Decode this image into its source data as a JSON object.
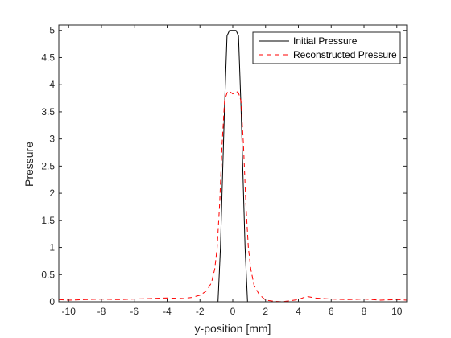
{
  "chart_data": {
    "type": "line",
    "title": "",
    "xlabel": "y-position [mm]",
    "ylabel": "Pressure",
    "xlim": [
      -10.6,
      10.6
    ],
    "ylim": [
      0,
      5.1
    ],
    "xticks": [
      -10,
      -8,
      -6,
      -4,
      -2,
      0,
      2,
      4,
      6,
      8,
      10
    ],
    "xtick_labels": [
      "-10",
      "-8",
      "-6",
      "-4",
      "-2",
      "0",
      "2",
      "4",
      "6",
      "8",
      "10"
    ],
    "yticks": [
      0,
      0.5,
      1,
      1.5,
      2,
      2.5,
      3,
      3.5,
      4,
      4.5,
      5
    ],
    "ytick_labels": [
      "0",
      "0.5",
      "1",
      "1.5",
      "2",
      "2.5",
      "3",
      "3.5",
      "4",
      "4.5",
      "5"
    ],
    "grid": false,
    "legend_position": "top-right",
    "series": [
      {
        "name": "Initial Pressure",
        "color": "#000000",
        "style": "solid",
        "x": [
          -10.6,
          -0.9,
          -0.75,
          -0.5,
          -0.35,
          -0.2,
          0.0,
          0.2,
          0.35,
          0.5,
          0.75,
          0.9,
          10.6
        ],
        "y": [
          0,
          0,
          1.0,
          3.6,
          4.9,
          5.0,
          5.0,
          5.0,
          4.9,
          3.6,
          1.0,
          0,
          0
        ]
      },
      {
        "name": "Reconstructed Pressure",
        "color": "#ff0000",
        "style": "dashed",
        "x": [
          -10.6,
          -10.0,
          -9.0,
          -8.0,
          -7.0,
          -6.0,
          -5.0,
          -4.0,
          -3.0,
          -2.5,
          -2.0,
          -1.6,
          -1.3,
          -1.1,
          -0.95,
          -0.8,
          -0.65,
          -0.5,
          -0.35,
          -0.2,
          0.0,
          0.2,
          0.35,
          0.5,
          0.65,
          0.8,
          0.95,
          1.1,
          1.3,
          1.6,
          2.0,
          2.5,
          3.0,
          4.0,
          4.5,
          5.0,
          6.0,
          7.0,
          8.0,
          9.0,
          10.0,
          10.6
        ],
        "y": [
          0.04,
          0.03,
          0.04,
          0.05,
          0.04,
          0.05,
          0.06,
          0.07,
          0.06,
          0.08,
          0.12,
          0.2,
          0.35,
          0.6,
          1.0,
          1.8,
          2.9,
          3.7,
          3.85,
          3.88,
          3.83,
          3.88,
          3.85,
          3.7,
          2.9,
          1.8,
          1.0,
          0.6,
          0.3,
          0.14,
          0.03,
          0.01,
          0.0,
          0.04,
          0.1,
          0.07,
          0.05,
          0.04,
          0.05,
          0.03,
          0.04,
          0.03
        ]
      }
    ]
  }
}
